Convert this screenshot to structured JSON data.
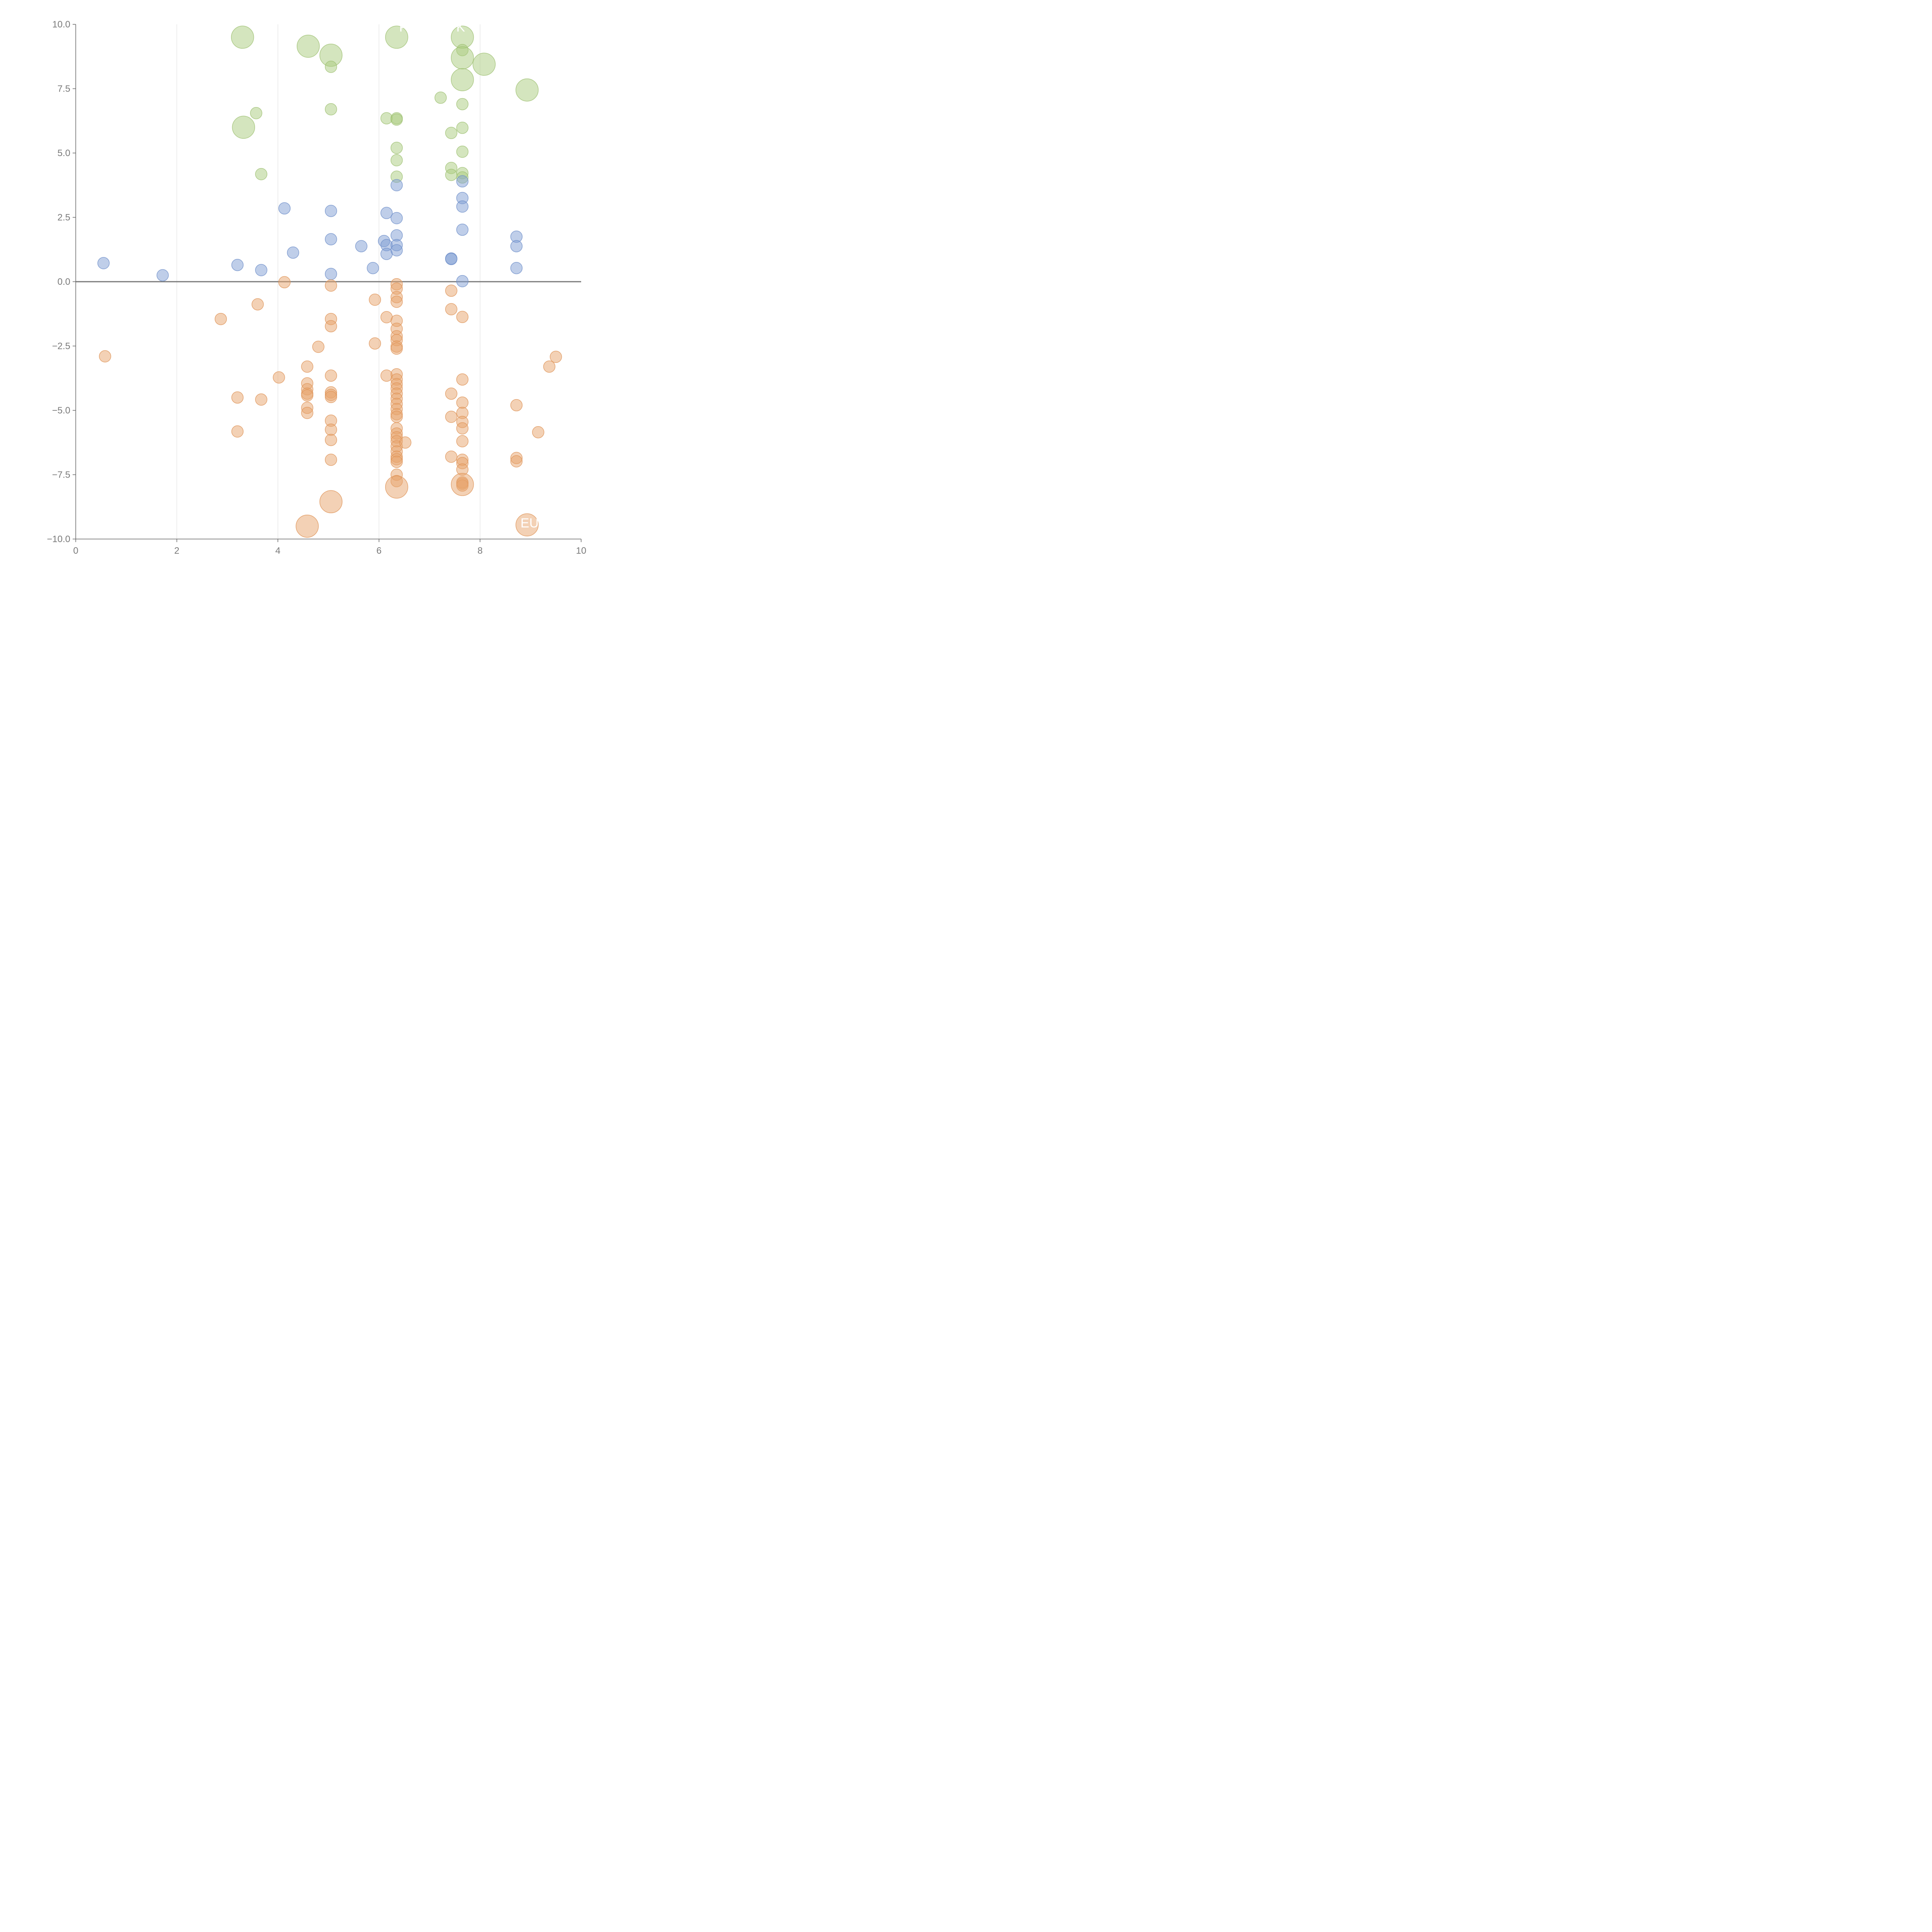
{
  "chart_data": {
    "type": "scatter",
    "title": "",
    "xlabel": "",
    "ylabel": "",
    "xlim": [
      0,
      10
    ],
    "ylim": [
      -10,
      10
    ],
    "x_ticks": [
      0,
      2,
      4,
      6,
      8,
      10
    ],
    "x_tick_labels": [
      "0",
      "2",
      "4",
      "6",
      "8",
      "10"
    ],
    "y_ticks": [
      10,
      7.5,
      5,
      2.5,
      0,
      -2.5,
      -5,
      -7.5,
      -10
    ],
    "y_tick_labels": [
      "10.0",
      "7.5",
      "5.0",
      "2.5",
      "0.0",
      "−2.5",
      "−5.0",
      "−7.5",
      "−10.0"
    ],
    "grid": "vertical lines at x ticks",
    "reference_line_y": 0,
    "colors": {
      "green": "#a9cb7d",
      "blue": "#7f9ed3",
      "orange": "#e8a36b",
      "axis": "#666666",
      "grid": "#dddddd",
      "zero_line": "#777777"
    },
    "series": [
      {
        "color": "green",
        "points": [
          [
            3.3,
            9.5,
            2
          ],
          [
            4.6,
            9.15,
            2
          ],
          [
            5.05,
            8.8,
            2
          ],
          [
            5.05,
            8.35,
            1
          ],
          [
            6.35,
            9.5,
            2
          ],
          [
            7.65,
            9.5,
            2
          ],
          [
            7.65,
            9.0,
            1
          ],
          [
            7.65,
            8.7,
            2
          ],
          [
            8.08,
            8.45,
            2
          ],
          [
            7.65,
            7.85,
            2
          ],
          [
            7.22,
            7.15,
            1
          ],
          [
            8.93,
            7.45,
            2
          ],
          [
            7.65,
            6.9,
            1
          ],
          [
            3.57,
            6.55,
            1
          ],
          [
            5.05,
            6.7,
            1
          ],
          [
            3.32,
            6.0,
            2
          ],
          [
            6.15,
            6.35,
            1
          ],
          [
            6.35,
            6.35,
            1
          ],
          [
            6.35,
            6.3,
            1
          ],
          [
            7.43,
            5.78,
            1
          ],
          [
            7.65,
            5.98,
            1
          ],
          [
            6.35,
            5.2,
            1
          ],
          [
            7.65,
            5.05,
            1
          ],
          [
            6.35,
            4.72,
            1
          ],
          [
            7.43,
            4.42,
            1
          ],
          [
            7.43,
            4.15,
            1
          ],
          [
            7.65,
            4.22,
            1
          ],
          [
            3.67,
            4.18,
            1
          ],
          [
            6.35,
            4.08,
            1
          ],
          [
            7.65,
            4.05,
            1
          ]
        ]
      },
      {
        "color": "blue",
        "points": [
          [
            0.55,
            0.72,
            1
          ],
          [
            1.72,
            0.25,
            1
          ],
          [
            3.2,
            0.65,
            1
          ],
          [
            3.67,
            0.45,
            1
          ],
          [
            4.13,
            2.85,
            1
          ],
          [
            4.3,
            1.13,
            1
          ],
          [
            5.05,
            2.75,
            1
          ],
          [
            5.05,
            1.65,
            1
          ],
          [
            5.05,
            0.3,
            1
          ],
          [
            5.65,
            1.38,
            1
          ],
          [
            5.88,
            0.53,
            1
          ],
          [
            6.1,
            1.58,
            1
          ],
          [
            6.15,
            2.67,
            1
          ],
          [
            6.15,
            1.42,
            1
          ],
          [
            6.15,
            1.08,
            1
          ],
          [
            6.35,
            3.75,
            1
          ],
          [
            6.35,
            2.47,
            1
          ],
          [
            6.35,
            1.8,
            1
          ],
          [
            6.35,
            1.42,
            1
          ],
          [
            6.35,
            1.22,
            1
          ],
          [
            7.43,
            0.9,
            1
          ],
          [
            7.43,
            0.88,
            1
          ],
          [
            7.65,
            3.9,
            1
          ],
          [
            7.65,
            3.25,
            1
          ],
          [
            7.65,
            2.92,
            1
          ],
          [
            7.65,
            2.02,
            1
          ],
          [
            7.65,
            0.02,
            1
          ],
          [
            8.72,
            1.75,
            1
          ],
          [
            8.72,
            1.38,
            1
          ],
          [
            8.72,
            0.53,
            1
          ]
        ]
      },
      {
        "color": "orange",
        "points": [
          [
            4.13,
            -0.02,
            1
          ],
          [
            5.05,
            -0.15,
            1
          ],
          [
            6.35,
            -0.1,
            1
          ],
          [
            6.35,
            -0.27,
            1
          ],
          [
            6.35,
            -0.6,
            1
          ],
          [
            6.35,
            -0.78,
            1
          ],
          [
            5.92,
            -0.7,
            1
          ],
          [
            7.43,
            -0.35,
            1
          ],
          [
            3.6,
            -0.88,
            1
          ],
          [
            2.87,
            -1.45,
            1
          ],
          [
            5.05,
            -1.45,
            1
          ],
          [
            5.05,
            -1.73,
            1
          ],
          [
            6.15,
            -1.38,
            1
          ],
          [
            6.35,
            -1.52,
            1
          ],
          [
            6.35,
            -1.83,
            1
          ],
          [
            6.35,
            -2.12,
            1
          ],
          [
            6.35,
            -2.27,
            1
          ],
          [
            6.35,
            -2.52,
            1
          ],
          [
            6.35,
            -2.6,
            1
          ],
          [
            7.43,
            -1.07,
            1
          ],
          [
            7.65,
            -1.37,
            1
          ],
          [
            5.92,
            -2.4,
            1
          ],
          [
            4.8,
            -2.53,
            1
          ],
          [
            0.58,
            -2.9,
            1
          ],
          [
            4.58,
            -3.3,
            1
          ],
          [
            4.02,
            -3.72,
            1
          ],
          [
            5.05,
            -3.65,
            1
          ],
          [
            6.15,
            -3.65,
            1
          ],
          [
            6.35,
            -3.6,
            1
          ],
          [
            6.35,
            -3.8,
            1
          ],
          [
            6.35,
            -3.98,
            1
          ],
          [
            6.35,
            -4.15,
            1
          ],
          [
            6.35,
            -4.35,
            1
          ],
          [
            6.35,
            -4.55,
            1
          ],
          [
            6.35,
            -4.75,
            1
          ],
          [
            6.35,
            -4.95,
            1
          ],
          [
            6.35,
            -5.15,
            1
          ],
          [
            6.35,
            -5.25,
            1
          ],
          [
            4.58,
            -3.95,
            1
          ],
          [
            4.58,
            -4.18,
            1
          ],
          [
            4.58,
            -4.35,
            1
          ],
          [
            4.58,
            -4.42,
            1
          ],
          [
            5.05,
            -4.3,
            1
          ],
          [
            5.05,
            -4.4,
            1
          ],
          [
            5.05,
            -4.48,
            1
          ],
          [
            3.2,
            -4.5,
            1
          ],
          [
            3.67,
            -4.58,
            1
          ],
          [
            4.58,
            -4.9,
            1
          ],
          [
            4.58,
            -5.1,
            1
          ],
          [
            7.43,
            -4.35,
            1
          ],
          [
            7.65,
            -3.8,
            1
          ],
          [
            7.65,
            -4.7,
            1
          ],
          [
            7.65,
            -5.1,
            1
          ],
          [
            7.65,
            -5.45,
            1
          ],
          [
            7.65,
            -5.7,
            1
          ],
          [
            7.43,
            -5.25,
            1
          ],
          [
            8.72,
            -4.8,
            1
          ],
          [
            9.5,
            -2.92,
            1
          ],
          [
            9.37,
            -3.3,
            1
          ],
          [
            5.05,
            -5.4,
            1
          ],
          [
            5.05,
            -5.75,
            1
          ],
          [
            5.05,
            -6.15,
            1
          ],
          [
            3.2,
            -5.82,
            1
          ],
          [
            6.35,
            -5.7,
            1
          ],
          [
            6.35,
            -5.9,
            1
          ],
          [
            6.35,
            -6.05,
            1
          ],
          [
            6.35,
            -6.2,
            1
          ],
          [
            6.35,
            -6.4,
            1
          ],
          [
            6.35,
            -6.6,
            1
          ],
          [
            6.35,
            -6.8,
            1
          ],
          [
            6.35,
            -6.9,
            1
          ],
          [
            6.35,
            -7.0,
            1
          ],
          [
            6.52,
            -6.25,
            1
          ],
          [
            9.15,
            -5.85,
            1
          ],
          [
            7.65,
            -6.2,
            1
          ],
          [
            7.65,
            -6.92,
            1
          ],
          [
            7.65,
            -7.05,
            1
          ],
          [
            7.65,
            -7.3,
            1
          ],
          [
            7.43,
            -6.8,
            1
          ],
          [
            8.72,
            -6.85,
            1
          ],
          [
            8.72,
            -6.98,
            1
          ],
          [
            5.05,
            -6.92,
            1
          ],
          [
            6.35,
            -7.5,
            1
          ],
          [
            6.35,
            -7.75,
            1
          ],
          [
            7.65,
            -7.8,
            1
          ],
          [
            7.65,
            -7.85,
            1
          ],
          [
            7.65,
            -7.92,
            1
          ],
          [
            6.35,
            -7.98,
            2
          ],
          [
            7.65,
            -7.88,
            2
          ],
          [
            5.05,
            -8.55,
            2
          ],
          [
            4.58,
            -9.5,
            2
          ],
          [
            8.93,
            -9.45,
            2
          ]
        ]
      }
    ],
    "annotations": [
      {
        "text": "P",
        "x": 6.4,
        "y": 9.72
      },
      {
        "text": "K",
        "x": 7.53,
        "y": 9.72
      },
      {
        "text": "e",
        "x": 7.13,
        "y": 7.65
      },
      {
        "text": "EU",
        "x": 8.8,
        "y": -9.55
      }
    ]
  }
}
